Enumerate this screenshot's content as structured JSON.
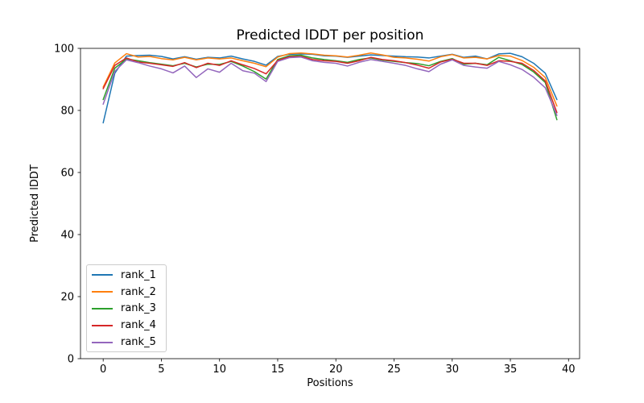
{
  "chart_data": {
    "type": "line",
    "title": "Predicted lDDT per position",
    "xlabel": "Positions",
    "ylabel": "Predicted lDDT",
    "xlim": [
      -1.95,
      40.95
    ],
    "ylim": [
      0,
      100
    ],
    "xticks": [
      0,
      5,
      10,
      15,
      20,
      25,
      30,
      35,
      40
    ],
    "yticks": [
      0,
      20,
      40,
      60,
      80,
      100
    ],
    "grid": false,
    "legend_position": "lower left",
    "line_width": 1.5,
    "x": [
      0,
      1,
      2,
      3,
      4,
      5,
      6,
      7,
      8,
      9,
      10,
      11,
      12,
      13,
      14,
      15,
      16,
      17,
      18,
      19,
      20,
      21,
      22,
      23,
      24,
      25,
      26,
      27,
      28,
      29,
      30,
      31,
      32,
      33,
      34,
      35,
      36,
      37,
      38,
      39
    ],
    "series": [
      {
        "name": "rank_1",
        "color": "#1f77b4",
        "values": [
          76.0,
          92.0,
          97.5,
          97.7,
          97.8,
          97.4,
          96.6,
          97.3,
          96.5,
          97.1,
          96.9,
          97.5,
          96.6,
          95.8,
          94.6,
          97.4,
          98.1,
          98.2,
          98.1,
          97.6,
          97.5,
          97.1,
          97.5,
          97.9,
          97.7,
          97.5,
          97.3,
          97.2,
          96.9,
          97.5,
          98.1,
          97.1,
          97.5,
          96.6,
          98.2,
          98.4,
          97.3,
          95.2,
          92.0,
          83.5
        ]
      },
      {
        "name": "rank_2",
        "color": "#ff7f0e",
        "values": [
          87.5,
          95.3,
          98.3,
          97.2,
          97.4,
          96.7,
          96.3,
          97.1,
          96.3,
          96.9,
          96.6,
          96.9,
          96.0,
          95.2,
          94.1,
          97.2,
          98.3,
          98.5,
          98.2,
          97.8,
          97.6,
          97.2,
          97.8,
          98.5,
          97.9,
          97.1,
          96.9,
          96.5,
          95.9,
          97.3,
          98.0,
          96.9,
          97.1,
          96.6,
          97.7,
          97.5,
          96.1,
          93.9,
          90.6,
          81.4
        ]
      },
      {
        "name": "rank_3",
        "color": "#2ca02c",
        "values": [
          83.5,
          93.6,
          96.6,
          96.0,
          95.4,
          94.9,
          94.4,
          95.2,
          94.0,
          94.9,
          94.8,
          95.8,
          94.3,
          92.5,
          90.1,
          96.4,
          97.6,
          97.8,
          96.9,
          96.4,
          96.0,
          95.5,
          96.4,
          96.9,
          96.2,
          95.8,
          95.4,
          95.1,
          94.4,
          95.8,
          96.7,
          94.9,
          95.2,
          94.7,
          97.1,
          96.0,
          94.8,
          92.4,
          89.0,
          77.0
        ]
      },
      {
        "name": "rank_4",
        "color": "#d62728",
        "values": [
          87.0,
          94.5,
          96.9,
          95.6,
          95.2,
          94.7,
          94.2,
          95.4,
          93.8,
          95.2,
          94.5,
          96.0,
          94.7,
          93.5,
          91.8,
          96.1,
          97.3,
          97.4,
          96.4,
          96.0,
          95.8,
          95.2,
          96.0,
          97.1,
          96.4,
          96.0,
          95.4,
          94.6,
          93.6,
          95.6,
          96.5,
          95.2,
          95.2,
          94.5,
          96.0,
          95.8,
          95.2,
          92.9,
          89.5,
          79.3
        ]
      },
      {
        "name": "rank_5",
        "color": "#9467bd",
        "values": [
          82.0,
          92.6,
          96.3,
          95.4,
          94.3,
          93.4,
          92.1,
          94.3,
          90.6,
          93.4,
          92.3,
          95.2,
          92.8,
          92.0,
          89.3,
          95.8,
          97.0,
          97.2,
          96.0,
          95.5,
          95.2,
          94.3,
          95.5,
          96.4,
          95.8,
          95.2,
          94.5,
          93.4,
          92.5,
          94.9,
          96.3,
          94.5,
          94.0,
          93.6,
          95.8,
          94.7,
          93.2,
          90.7,
          87.3,
          78.4
        ]
      }
    ]
  }
}
